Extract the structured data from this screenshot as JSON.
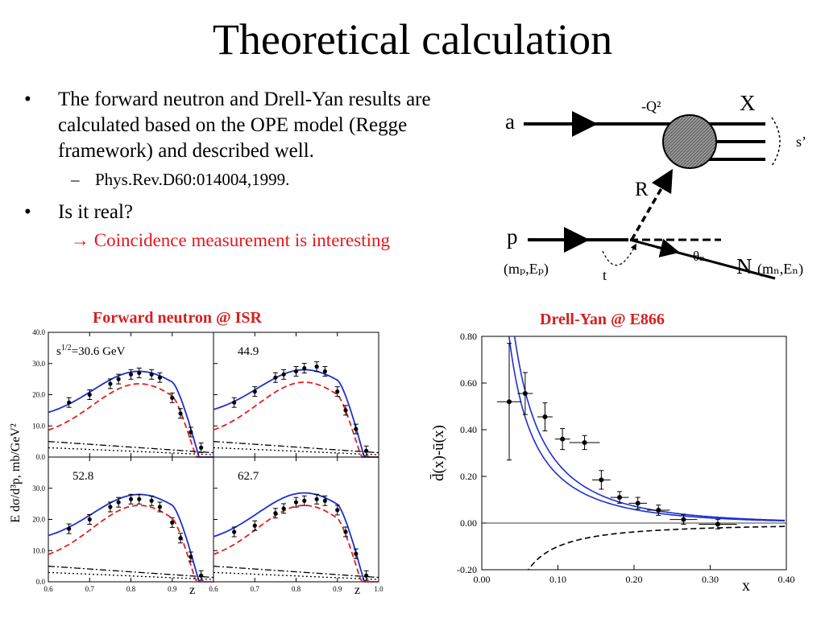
{
  "slide": {
    "title": "Theoretical calculation",
    "bullets": [
      {
        "text": "The forward neutron and Drell-Yan results are calculated based on the OPE model (Regge framework) and described well.",
        "sub": "Phys.Rev.D60:014004,1999."
      },
      {
        "text": "Is it real?",
        "sub": "→ Coincidence measurement is interesting"
      }
    ]
  },
  "diagram": {
    "label_a": "a",
    "label_q2": "-Q²",
    "label_x": "X",
    "label_s": "s’",
    "label_r": "R",
    "label_p": "p",
    "label_mp": "(mₚ,Eₚ)",
    "label_t": "t",
    "label_theta": "θₙ",
    "label_n": "N",
    "label_mn": "(mₙ,Eₙ)"
  },
  "chart_data": [
    {
      "type": "line",
      "title": "Forward neutron @ ISR",
      "xlabel": "z",
      "ylabel": "E dσ/d³p, mb/GeV²",
      "xlim": [
        0.6,
        1.0
      ],
      "ylim": [
        0.0,
        40.0
      ],
      "x_ticks": [
        "0.6",
        "0.7",
        "0.8",
        "0.9",
        "1.0"
      ],
      "y_ticks": [
        "0.0",
        "10.0",
        "20.0",
        "30.0",
        "40.0"
      ],
      "panels": [
        {
          "label": "s^{1/2}=30.6 GeV",
          "points": [
            [
              0.65,
              17.5
            ],
            [
              0.7,
              20
            ],
            [
              0.75,
              23.5
            ],
            [
              0.77,
              25
            ],
            [
              0.8,
              26.5
            ],
            [
              0.82,
              27
            ],
            [
              0.85,
              26.5
            ],
            [
              0.87,
              25.5
            ],
            [
              0.9,
              19
            ],
            [
              0.92,
              14
            ],
            [
              0.945,
              8
            ],
            [
              0.97,
              3
            ]
          ]
        },
        {
          "label": "44.9",
          "points": [
            [
              0.65,
              17.5
            ],
            [
              0.7,
              21
            ],
            [
              0.75,
              25.5
            ],
            [
              0.77,
              26.5
            ],
            [
              0.8,
              27.5
            ],
            [
              0.82,
              28.5
            ],
            [
              0.85,
              29
            ],
            [
              0.87,
              27.5
            ],
            [
              0.9,
              21
            ],
            [
              0.92,
              15
            ],
            [
              0.945,
              9
            ],
            [
              0.97,
              2
            ]
          ]
        },
        {
          "label": "52.8",
          "points": [
            [
              0.65,
              17
            ],
            [
              0.7,
              20
            ],
            [
              0.75,
              24
            ],
            [
              0.77,
              25.5
            ],
            [
              0.8,
              26.5
            ],
            [
              0.82,
              26.5
            ],
            [
              0.85,
              26
            ],
            [
              0.87,
              24
            ],
            [
              0.9,
              19
            ],
            [
              0.92,
              14
            ],
            [
              0.945,
              8
            ],
            [
              0.97,
              2
            ]
          ]
        },
        {
          "label": "62.7",
          "points": [
            [
              0.65,
              16
            ],
            [
              0.7,
              18
            ],
            [
              0.75,
              22
            ],
            [
              0.77,
              23.5
            ],
            [
              0.8,
              25.5
            ],
            [
              0.82,
              26
            ],
            [
              0.85,
              26.5
            ],
            [
              0.87,
              26
            ],
            [
              0.9,
              23
            ],
            [
              0.92,
              16
            ],
            [
              0.945,
              9
            ],
            [
              0.97,
              2
            ]
          ]
        }
      ],
      "series": [
        {
          "name": "",
          "style": "solid",
          "color": "#1f2fd0"
        },
        {
          "name": "",
          "style": "dashed",
          "color": "#e02020"
        },
        {
          "name": "",
          "style": "dash-dot",
          "color": "#000000"
        },
        {
          "name": "",
          "style": "dotted",
          "color": "#000000"
        }
      ]
    },
    {
      "type": "line",
      "title": "Drell-Yan @ E866",
      "xlabel": "x",
      "ylabel": "d̄(x)-ū(x)",
      "xlim": [
        0.0,
        0.4
      ],
      "ylim": [
        -0.2,
        0.8
      ],
      "x_ticks": [
        "0.00",
        "0.10",
        "0.20",
        "0.30",
        "0.40"
      ],
      "y_ticks": [
        "-0.20",
        "0.00",
        "0.20",
        "0.40",
        "0.60",
        "0.80"
      ],
      "points": [
        {
          "x": 0.036,
          "y": 0.52,
          "ex": 0.016,
          "ey": 0.25
        },
        {
          "x": 0.057,
          "y": 0.555,
          "ex": 0.01,
          "ey": 0.09
        },
        {
          "x": 0.083,
          "y": 0.455,
          "ex": 0.01,
          "ey": 0.06
        },
        {
          "x": 0.106,
          "y": 0.36,
          "ex": 0.01,
          "ey": 0.045
        },
        {
          "x": 0.135,
          "y": 0.345,
          "ex": 0.02,
          "ey": 0.03
        },
        {
          "x": 0.157,
          "y": 0.185,
          "ex": 0.012,
          "ey": 0.04
        },
        {
          "x": 0.181,
          "y": 0.11,
          "ex": 0.012,
          "ey": 0.025
        },
        {
          "x": 0.205,
          "y": 0.085,
          "ex": 0.012,
          "ey": 0.025
        },
        {
          "x": 0.232,
          "y": 0.055,
          "ex": 0.015,
          "ey": 0.022
        },
        {
          "x": 0.265,
          "y": 0.015,
          "ex": 0.018,
          "ey": 0.02
        },
        {
          "x": 0.31,
          "y": -0.005,
          "ex": 0.025,
          "ey": 0.02
        }
      ],
      "series": [
        {
          "name": "",
          "style": "solid",
          "color": "#1f2fd0"
        },
        {
          "name": "",
          "style": "solid",
          "color": "#1f2fd0"
        },
        {
          "name": "",
          "style": "dashed",
          "color": "#000000"
        }
      ]
    }
  ]
}
